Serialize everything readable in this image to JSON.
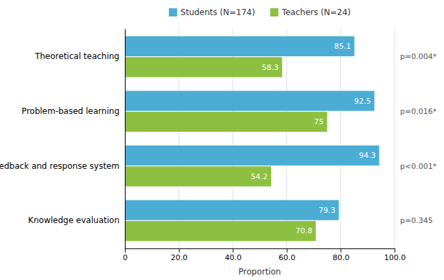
{
  "chart_data": {
    "type": "bar",
    "orientation": "horizontal",
    "categories": [
      "Theoretical teaching",
      "Problem-based learning",
      "Feedback and response system",
      "Knowledge evaluation"
    ],
    "series": [
      {
        "name": "Students (N=174)",
        "color": "#4BADD4",
        "values": [
          85.1,
          92.5,
          94.3,
          79.3
        ]
      },
      {
        "name": "Teachers (N=24)",
        "color": "#8DC040",
        "values": [
          58.3,
          75.0,
          54.2,
          70.8
        ]
      }
    ],
    "xlabel": "Proportion",
    "xlim": [
      0,
      100
    ],
    "xticks": [
      0,
      {
        "value": 20,
        "label": "20.0"
      },
      {
        "value": 40,
        "label": "40.0"
      },
      {
        "value": 60,
        "label": "60.0"
      },
      {
        "value": 80,
        "label": "80.0"
      },
      {
        "value": 100,
        "label": "100.0"
      }
    ],
    "annotations": [
      "p=0.004*",
      "p=0.016*",
      "p<0.001*",
      "p=0.345"
    ],
    "grid": true,
    "legend": "top",
    "data_labels": true
  }
}
